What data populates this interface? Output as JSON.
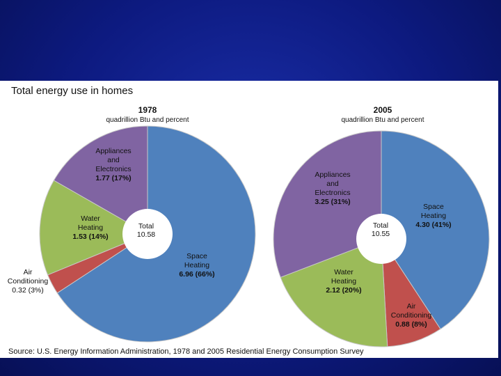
{
  "chart_data": {
    "type": "pie",
    "title": "Total energy use in homes",
    "unit": "quadrillion Btu and percent",
    "source": "Source:  U.S. Energy Information Administration, 1978 and 2005 Residential Energy Consumption Survey",
    "pies": [
      {
        "year": "1978",
        "total_label": "Total",
        "total": "10.58",
        "slices": [
          {
            "name": "Space Heating",
            "name_lines": [
              "Space",
              "Heating"
            ],
            "value": 6.96,
            "value_text": "6.96 (66%)",
            "percent": 66,
            "color": "#4f81bd"
          },
          {
            "name": "Air Conditioning",
            "name_lines": [
              "Air",
              "Conditioning"
            ],
            "value": 0.32,
            "value_text": "0.32 (3%)",
            "percent": 3,
            "color": "#c0504d"
          },
          {
            "name": "Water Heating",
            "name_lines": [
              "Water",
              "Heating"
            ],
            "value": 1.53,
            "value_text": "1.53 (14%)",
            "percent": 14,
            "color": "#9bbb59"
          },
          {
            "name": "Appliances and Electronics",
            "name_lines": [
              "Appliances",
              "and",
              "Electronics"
            ],
            "value": 1.77,
            "value_text": "1.77 (17%)",
            "percent": 17,
            "color": "#8064a2"
          }
        ]
      },
      {
        "year": "2005",
        "total_label": "Total",
        "total": "10.55",
        "slices": [
          {
            "name": "Space Heating",
            "name_lines": [
              "Space",
              "Heating"
            ],
            "value": 4.3,
            "value_text": "4.30 (41%)",
            "percent": 41,
            "color": "#4f81bd"
          },
          {
            "name": "Air Conditioning",
            "name_lines": [
              "Air",
              "Conditioning"
            ],
            "value": 0.88,
            "value_text": "0.88 (8%)",
            "percent": 8,
            "color": "#c0504d"
          },
          {
            "name": "Water Heating",
            "name_lines": [
              "Water",
              "Heating"
            ],
            "value": 2.12,
            "value_text": "2.12 (20%)",
            "percent": 20,
            "color": "#9bbb59"
          },
          {
            "name": "Appliances and Electronics",
            "name_lines": [
              "Appliances",
              "and",
              "Electronics"
            ],
            "value": 3.25,
            "value_text": "3.25 (31%)",
            "percent": 31,
            "color": "#8064a2"
          }
        ]
      }
    ]
  }
}
